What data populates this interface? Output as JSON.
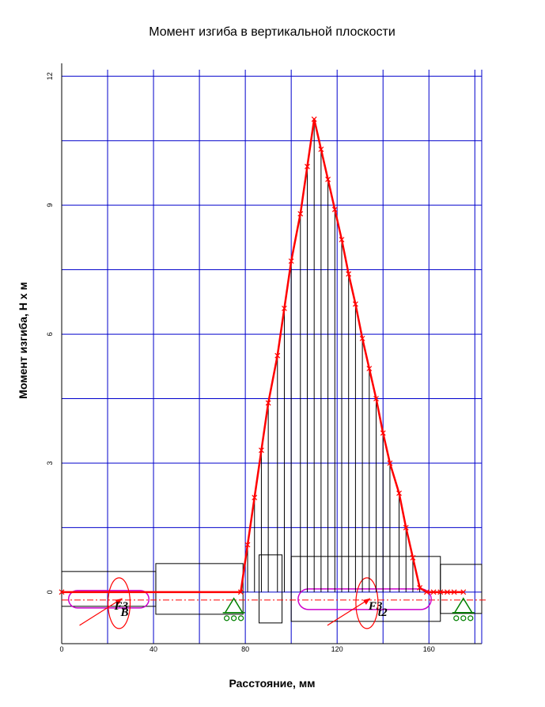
{
  "chart_data": {
    "type": "line",
    "title": "Момент изгиба в вертикальной плоскости",
    "xlabel": "Расстояние, мм",
    "ylabel": "Момент изгиба, Н х м",
    "xlim": [
      0,
      183
    ],
    "ylim": [
      -1.2,
      12.3
    ],
    "grid": true,
    "x_ticks": [
      0,
      40,
      80,
      120,
      160
    ],
    "y_ticks": [
      0,
      3,
      6,
      9,
      12
    ],
    "series": [
      {
        "color": "#ff0000",
        "x": [
          0,
          78,
          81,
          84,
          87,
          90,
          94,
          97,
          100,
          104,
          107,
          110,
          113,
          116,
          119,
          122,
          125,
          128,
          131,
          134,
          137,
          140,
          143,
          147,
          150,
          153,
          156,
          159,
          162,
          165,
          168,
          171,
          175
        ],
        "y": [
          0,
          0,
          1.1,
          2.2,
          3.3,
          4.4,
          5.5,
          6.6,
          7.7,
          8.8,
          9.9,
          11.0,
          10.3,
          9.6,
          8.9,
          8.2,
          7.4,
          6.7,
          5.9,
          5.2,
          4.5,
          3.7,
          3.0,
          2.3,
          1.5,
          0.8,
          0.1,
          0,
          0,
          0,
          0,
          0,
          0
        ]
      }
    ],
    "annotations": [
      {
        "text": "F3",
        "near": "left load"
      },
      {
        "text": "B",
        "near": "left load"
      },
      {
        "text": "F3",
        "near": "right load"
      },
      {
        "text": "t2",
        "near": "right load"
      }
    ]
  },
  "colors": {
    "grid": "#0000cc",
    "curve": "#ff0000",
    "hatch": "#000000",
    "shaft": "#000000",
    "keyway": "#cc00cc",
    "support": "#008000",
    "axis_centerline": "#ff0000"
  },
  "labels": {
    "left_force": "F3",
    "left_sub": "B",
    "right_force": "F3",
    "right_sub": "t2"
  }
}
